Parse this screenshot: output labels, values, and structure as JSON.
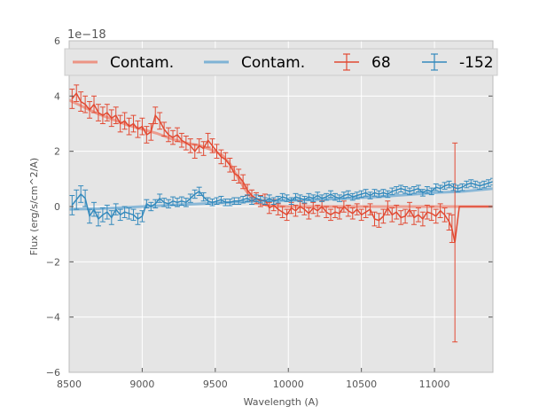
{
  "chart_data": {
    "type": "line",
    "title": "",
    "xlabel": "Wavelength (A)",
    "ylabel": "Flux (erg/s/cm^2/A)",
    "y_offset_label": "1e−18",
    "xlim": [
      8500,
      11400
    ],
    "ylim": [
      -6,
      6
    ],
    "xticks": [
      8500,
      9000,
      9500,
      10000,
      10500,
      11000
    ],
    "yticks": [
      -6,
      -4,
      -2,
      0,
      2,
      4,
      6
    ],
    "ytick_labels": [
      "−6",
      "−4",
      "−2",
      "0",
      "2",
      "4",
      "6"
    ],
    "grid": true,
    "legend_position": "top",
    "colors": {
      "red": "#e24a33",
      "blue": "#348abd",
      "red_contam": "#ec9484",
      "blue_contam": "#7fb3d5",
      "background": "#e5e5e5"
    },
    "legend": [
      {
        "label": "Contam.",
        "kind": "line",
        "color": "#ec9484"
      },
      {
        "label": "Contam.",
        "kind": "line",
        "color": "#7fb3d5"
      },
      {
        "label": "68",
        "kind": "errorbar",
        "color": "#e24a33"
      },
      {
        "label": "-152",
        "kind": "errorbar",
        "color": "#348abd"
      }
    ],
    "series": [
      {
        "name": "68",
        "kind": "errorbar",
        "color": "#e24a33",
        "x": [
          8520,
          8550,
          8580,
          8610,
          8640,
          8670,
          8700,
          8730,
          8760,
          8790,
          8820,
          8850,
          8880,
          8910,
          8940,
          8970,
          9000,
          9030,
          9060,
          9090,
          9120,
          9150,
          9180,
          9210,
          9240,
          9270,
          9300,
          9330,
          9360,
          9390,
          9420,
          9450,
          9480,
          9510,
          9540,
          9570,
          9600,
          9630,
          9660,
          9690,
          9720,
          9750,
          9780,
          9810,
          9840,
          9870,
          9900,
          9930,
          9960,
          9990,
          10020,
          10050,
          10080,
          10110,
          10140,
          10170,
          10200,
          10230,
          10260,
          10290,
          10320,
          10350,
          10380,
          10410,
          10440,
          10470,
          10500,
          10530,
          10560,
          10590,
          10620,
          10650,
          10680,
          10710,
          10740,
          10770,
          10800,
          10830,
          10860,
          10890,
          10920,
          10950,
          10980,
          11010,
          11040,
          11070,
          11100,
          11120,
          11140,
          11170,
          11200,
          11250,
          11300,
          11350,
          11400
        ],
        "y": [
          3.9,
          4.1,
          3.8,
          3.7,
          3.5,
          3.7,
          3.4,
          3.3,
          3.4,
          3.2,
          3.3,
          3.0,
          3.1,
          2.9,
          3.0,
          2.8,
          2.9,
          2.6,
          2.7,
          3.3,
          3.1,
          2.8,
          2.6,
          2.5,
          2.6,
          2.4,
          2.3,
          2.2,
          2.0,
          2.2,
          2.1,
          2.4,
          2.2,
          2.0,
          1.8,
          1.7,
          1.5,
          1.2,
          1.1,
          0.9,
          0.6,
          0.4,
          0.3,
          0.2,
          0.25,
          -0.05,
          0.05,
          -0.1,
          -0.2,
          -0.3,
          -0.05,
          -0.15,
          0.0,
          -0.1,
          -0.25,
          -0.05,
          -0.15,
          0.0,
          -0.2,
          -0.3,
          -0.2,
          -0.25,
          0.0,
          -0.15,
          -0.25,
          -0.1,
          -0.3,
          -0.2,
          -0.1,
          -0.45,
          -0.5,
          -0.35,
          -0.05,
          -0.3,
          -0.2,
          -0.4,
          -0.35,
          -0.1,
          -0.4,
          -0.3,
          -0.45,
          -0.2,
          -0.25,
          -0.35,
          -0.15,
          -0.3,
          -0.55,
          -0.8,
          -1.3,
          0.0,
          0.0,
          0.0,
          0.0,
          0.0,
          0.0
        ],
        "err": [
          0.35,
          0.3,
          0.35,
          0.3,
          0.3,
          0.3,
          0.3,
          0.3,
          0.3,
          0.3,
          0.3,
          0.3,
          0.3,
          0.3,
          0.3,
          0.3,
          0.3,
          0.3,
          0.3,
          0.3,
          0.3,
          0.25,
          0.25,
          0.25,
          0.25,
          0.25,
          0.25,
          0.25,
          0.25,
          0.25,
          0.25,
          0.25,
          0.25,
          0.25,
          0.25,
          0.25,
          0.25,
          0.25,
          0.25,
          0.25,
          0.2,
          0.2,
          0.2,
          0.2,
          0.2,
          0.2,
          0.2,
          0.2,
          0.2,
          0.2,
          0.2,
          0.2,
          0.2,
          0.2,
          0.2,
          0.2,
          0.2,
          0.2,
          0.2,
          0.2,
          0.2,
          0.2,
          0.2,
          0.2,
          0.2,
          0.2,
          0.2,
          0.2,
          0.2,
          0.25,
          0.25,
          0.25,
          0.25,
          0.25,
          0.25,
          0.25,
          0.25,
          0.25,
          0.25,
          0.25,
          0.25,
          0.25,
          0.25,
          0.25,
          0.25,
          0.25,
          0.3,
          0.5,
          3.6,
          0,
          0,
          0,
          0,
          0,
          0
        ]
      },
      {
        "name": "-152",
        "kind": "errorbar",
        "color": "#348abd",
        "x": [
          8520,
          8550,
          8580,
          8610,
          8640,
          8670,
          8700,
          8730,
          8760,
          8790,
          8820,
          8850,
          8880,
          8910,
          8940,
          8970,
          9000,
          9030,
          9060,
          9090,
          9120,
          9150,
          9180,
          9210,
          9240,
          9270,
          9300,
          9330,
          9360,
          9390,
          9420,
          9450,
          9480,
          9510,
          9540,
          9570,
          9600,
          9630,
          9660,
          9690,
          9720,
          9750,
          9780,
          9810,
          9840,
          9870,
          9900,
          9930,
          9960,
          9990,
          10020,
          10050,
          10080,
          10110,
          10140,
          10170,
          10200,
          10230,
          10260,
          10290,
          10320,
          10350,
          10380,
          10410,
          10440,
          10470,
          10500,
          10530,
          10560,
          10590,
          10620,
          10650,
          10680,
          10710,
          10740,
          10770,
          10800,
          10830,
          10860,
          10890,
          10920,
          10950,
          10980,
          11010,
          11040,
          11070,
          11100,
          11130,
          11160,
          11190,
          11220,
          11250,
          11280,
          11310,
          11340,
          11370,
          11400
        ],
        "y": [
          0.05,
          0.25,
          0.45,
          0.3,
          -0.35,
          -0.1,
          -0.45,
          -0.3,
          -0.2,
          -0.4,
          -0.1,
          -0.3,
          -0.2,
          -0.25,
          -0.3,
          -0.45,
          -0.35,
          0.1,
          0.0,
          0.1,
          0.3,
          0.15,
          0.1,
          0.2,
          0.15,
          0.2,
          0.15,
          0.3,
          0.45,
          0.55,
          0.35,
          0.2,
          0.15,
          0.2,
          0.25,
          0.15,
          0.15,
          0.2,
          0.2,
          0.25,
          0.3,
          0.2,
          0.3,
          0.25,
          0.2,
          0.3,
          0.2,
          0.25,
          0.35,
          0.3,
          0.2,
          0.35,
          0.3,
          0.25,
          0.35,
          0.3,
          0.4,
          0.3,
          0.35,
          0.45,
          0.35,
          0.3,
          0.4,
          0.45,
          0.35,
          0.4,
          0.45,
          0.5,
          0.4,
          0.5,
          0.45,
          0.5,
          0.45,
          0.55,
          0.6,
          0.65,
          0.6,
          0.55,
          0.6,
          0.65,
          0.5,
          0.6,
          0.55,
          0.7,
          0.65,
          0.75,
          0.8,
          0.7,
          0.65,
          0.7,
          0.8,
          0.85,
          0.8,
          0.75,
          0.8,
          0.85,
          0.9
        ],
        "err": [
          0.35,
          0.35,
          0.3,
          0.3,
          0.25,
          0.25,
          0.25,
          0.25,
          0.25,
          0.25,
          0.2,
          0.2,
          0.2,
          0.2,
          0.2,
          0.2,
          0.2,
          0.15,
          0.15,
          0.15,
          0.15,
          0.15,
          0.15,
          0.15,
          0.15,
          0.15,
          0.15,
          0.15,
          0.15,
          0.15,
          0.15,
          0.12,
          0.12,
          0.12,
          0.12,
          0.12,
          0.12,
          0.12,
          0.12,
          0.12,
          0.12,
          0.12,
          0.12,
          0.12,
          0.12,
          0.12,
          0.12,
          0.12,
          0.12,
          0.12,
          0.12,
          0.12,
          0.12,
          0.12,
          0.12,
          0.12,
          0.12,
          0.12,
          0.12,
          0.12,
          0.12,
          0.12,
          0.12,
          0.12,
          0.12,
          0.12,
          0.12,
          0.12,
          0.12,
          0.12,
          0.12,
          0.12,
          0.12,
          0.12,
          0.12,
          0.12,
          0.12,
          0.12,
          0.12,
          0.12,
          0.12,
          0.12,
          0.12,
          0.12,
          0.12,
          0.12,
          0.12,
          0.12,
          0.12,
          0.12,
          0.12,
          0.12,
          0.12,
          0.12,
          0.12,
          0.12,
          0.12
        ]
      },
      {
        "name": "Contam.",
        "kind": "line",
        "color": "#ec9484",
        "x": [
          8500,
          8600,
          8700,
          8800,
          8900,
          9000,
          9100,
          9200,
          9300,
          9400,
          9500,
          9550,
          9600,
          9650,
          9700,
          9750,
          9800,
          9850,
          9900,
          10000,
          10200,
          10500,
          10800,
          11100,
          11400
        ],
        "y": [
          3.85,
          3.6,
          3.35,
          3.15,
          2.95,
          2.8,
          2.65,
          2.45,
          2.3,
          2.2,
          2.0,
          1.85,
          1.55,
          1.1,
          0.65,
          0.3,
          0.12,
          0.04,
          0.02,
          0.0,
          0.0,
          0.0,
          0.0,
          0.0,
          0.0
        ]
      },
      {
        "name": "Contam.",
        "kind": "line",
        "color": "#7fb3d5",
        "x": [
          8500,
          8700,
          8900,
          9000,
          9200,
          9400,
          9600,
          9800,
          10000,
          10200,
          10400,
          10600,
          10800,
          11000,
          11200,
          11400
        ],
        "y": [
          -0.1,
          -0.08,
          -0.03,
          0.0,
          0.05,
          0.1,
          0.15,
          0.2,
          0.22,
          0.25,
          0.3,
          0.35,
          0.42,
          0.5,
          0.55,
          0.65
        ]
      }
    ]
  }
}
